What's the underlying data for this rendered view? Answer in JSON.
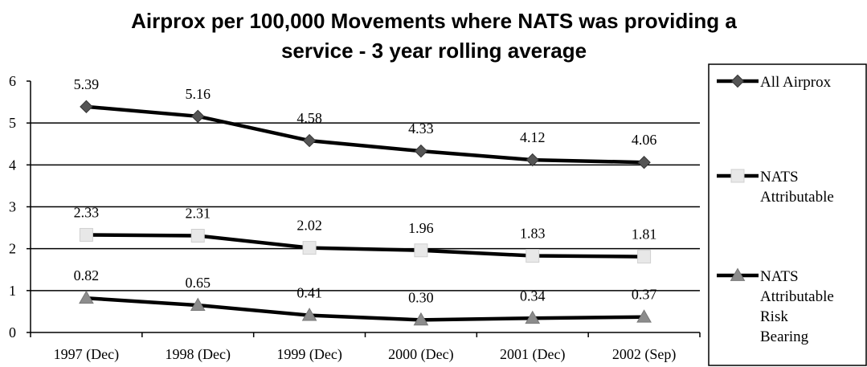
{
  "chart_data": {
    "type": "line",
    "title": "Airprox per 100,000 Movements where NATS was providing a service - 3 year rolling average",
    "title_lines": [
      "Airprox per 100,000 Movements where NATS was providing a",
      "service - 3 year rolling average"
    ],
    "xlabel": "",
    "ylabel": "",
    "categories": [
      "1997 (Dec)",
      "1998 (Dec)",
      "1999 (Dec)",
      "2000 (Dec)",
      "2001 (Dec)",
      "2002 (Sep)"
    ],
    "ylim": [
      0,
      6
    ],
    "yticks": [
      0,
      1,
      2,
      3,
      4,
      5,
      6
    ],
    "grid": true,
    "legend_position": "right",
    "series": [
      {
        "name": "All Airprox",
        "name_lines": [
          "All Airprox"
        ],
        "values": [
          5.39,
          5.16,
          4.58,
          4.33,
          4.12,
          4.06
        ],
        "labels": [
          "5.39",
          "5.16",
          "4.58",
          "4.33",
          "4.12",
          "4.06"
        ],
        "marker": "diamond",
        "marker_color": "#555555"
      },
      {
        "name": "NATS Attributable",
        "name_lines": [
          "NATS",
          "Attributable"
        ],
        "values": [
          2.33,
          2.31,
          2.02,
          1.96,
          1.83,
          1.81
        ],
        "labels": [
          "2.33",
          "2.31",
          "2.02",
          "1.96",
          "1.83",
          "1.81"
        ],
        "marker": "square",
        "marker_color": "#e8e8e8"
      },
      {
        "name": "NATS Attributable Risk Bearing",
        "name_lines": [
          "NATS",
          "Attributable",
          "Risk",
          "Bearing"
        ],
        "values": [
          0.82,
          0.65,
          0.41,
          0.3,
          0.34,
          0.37
        ],
        "labels": [
          "0.82",
          "0.65",
          "0.41",
          "0.30",
          "0.34",
          "0.37"
        ],
        "marker": "triangle",
        "marker_color": "#8c8c8c"
      }
    ]
  }
}
